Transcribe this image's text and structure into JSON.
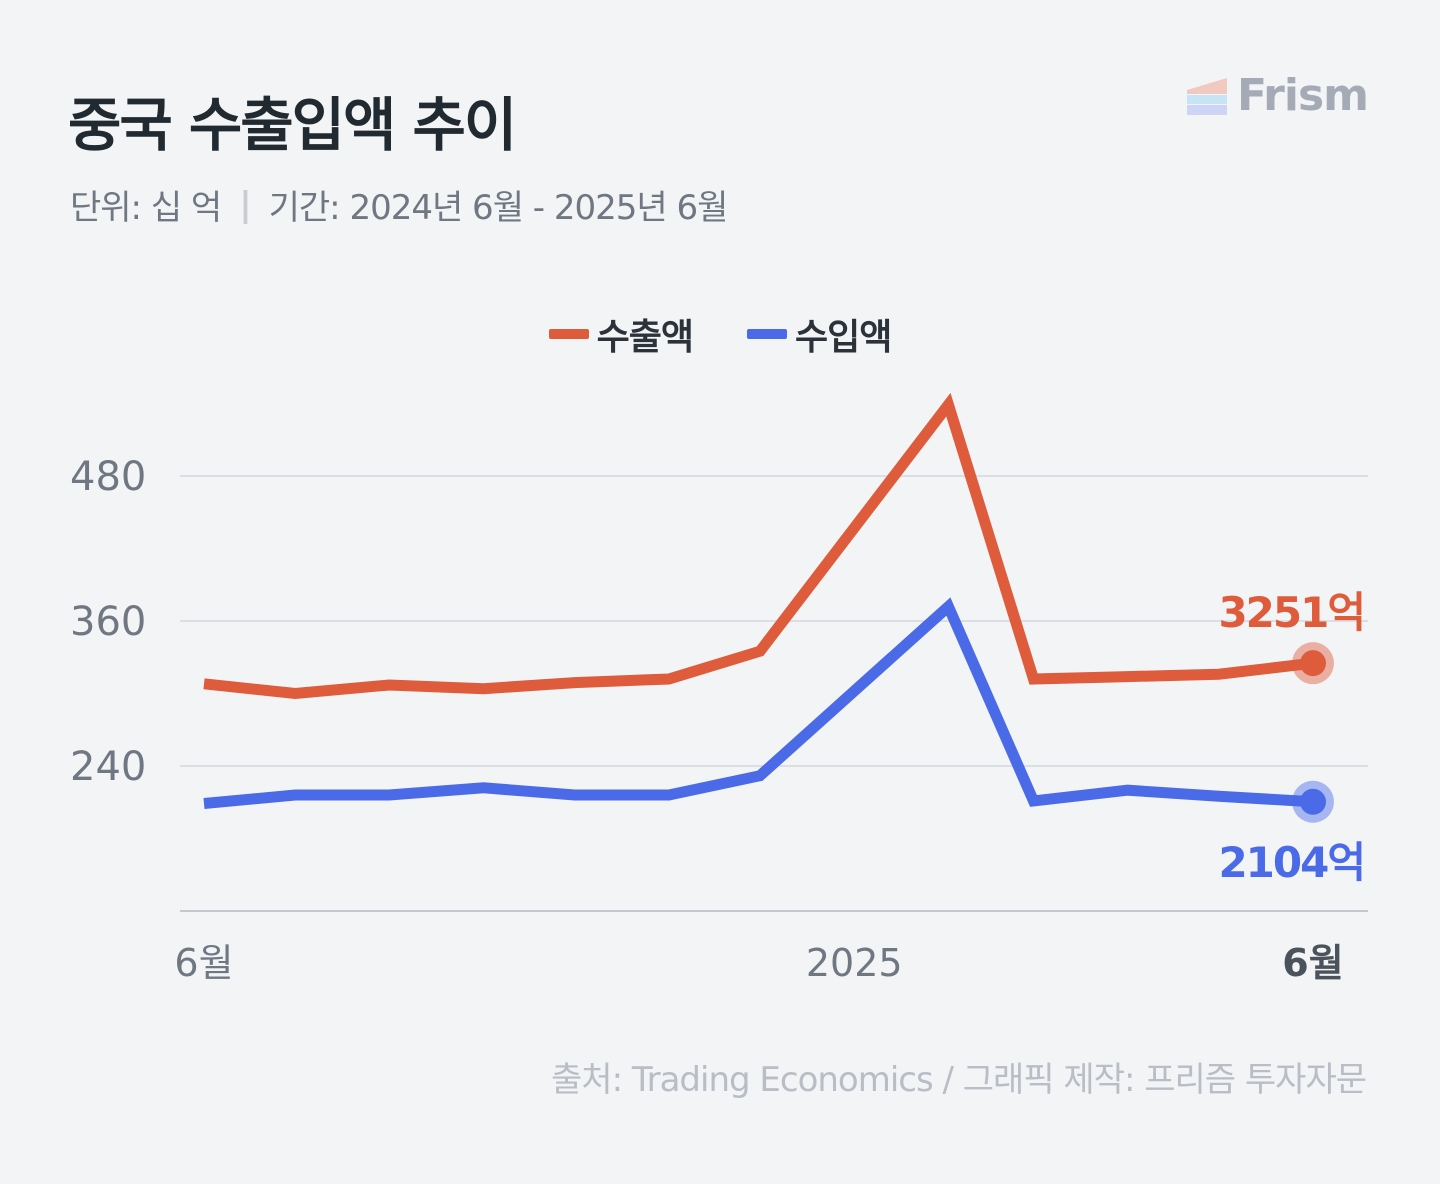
{
  "title": "중국 수출입액 추이",
  "subtitle": {
    "unit": "단위: 십 억",
    "separator": "|",
    "period": "기간: 2024년 6월 - 2025년 6월"
  },
  "brand": {
    "name": "Frism"
  },
  "source": "출처: Trading Economics / 그래픽 제작: 프리즘 투자자문",
  "colors": {
    "export": "#de5b3b",
    "import": "#4a6ae8",
    "grid": "#d3d6de",
    "axis_text": "#6f7782"
  },
  "chart_data": {
    "type": "line",
    "x": [
      "2024-06",
      "2024-07",
      "2024-08",
      "2024-09",
      "2024-10",
      "2024-11",
      "2024-12",
      "2025-02",
      "2025-03",
      "2025-04",
      "2025-05",
      "2025-06"
    ],
    "x_tick_labels": [
      {
        "x": "2024-06",
        "label": "6월"
      },
      {
        "x": "2025-01",
        "label": "2025"
      },
      {
        "x": "2025-06",
        "label": "6월"
      }
    ],
    "series": [
      {
        "name": "수출액",
        "color": "#de5b3b",
        "values": [
          308,
          300,
          307,
          304,
          309,
          312,
          335,
          539,
          312,
          314,
          316,
          325.1
        ]
      },
      {
        "name": "수입액",
        "color": "#4a6ae8",
        "values": [
          209,
          216,
          216,
          222,
          216,
          216,
          232,
          372,
          211,
          220,
          215,
          210.4
        ]
      }
    ],
    "end_labels": [
      "3251억",
      "2104억"
    ],
    "y_ticks": [
      240,
      360,
      480
    ],
    "ylim": [
      120,
      540
    ],
    "grid": true,
    "legend": "top-center"
  }
}
